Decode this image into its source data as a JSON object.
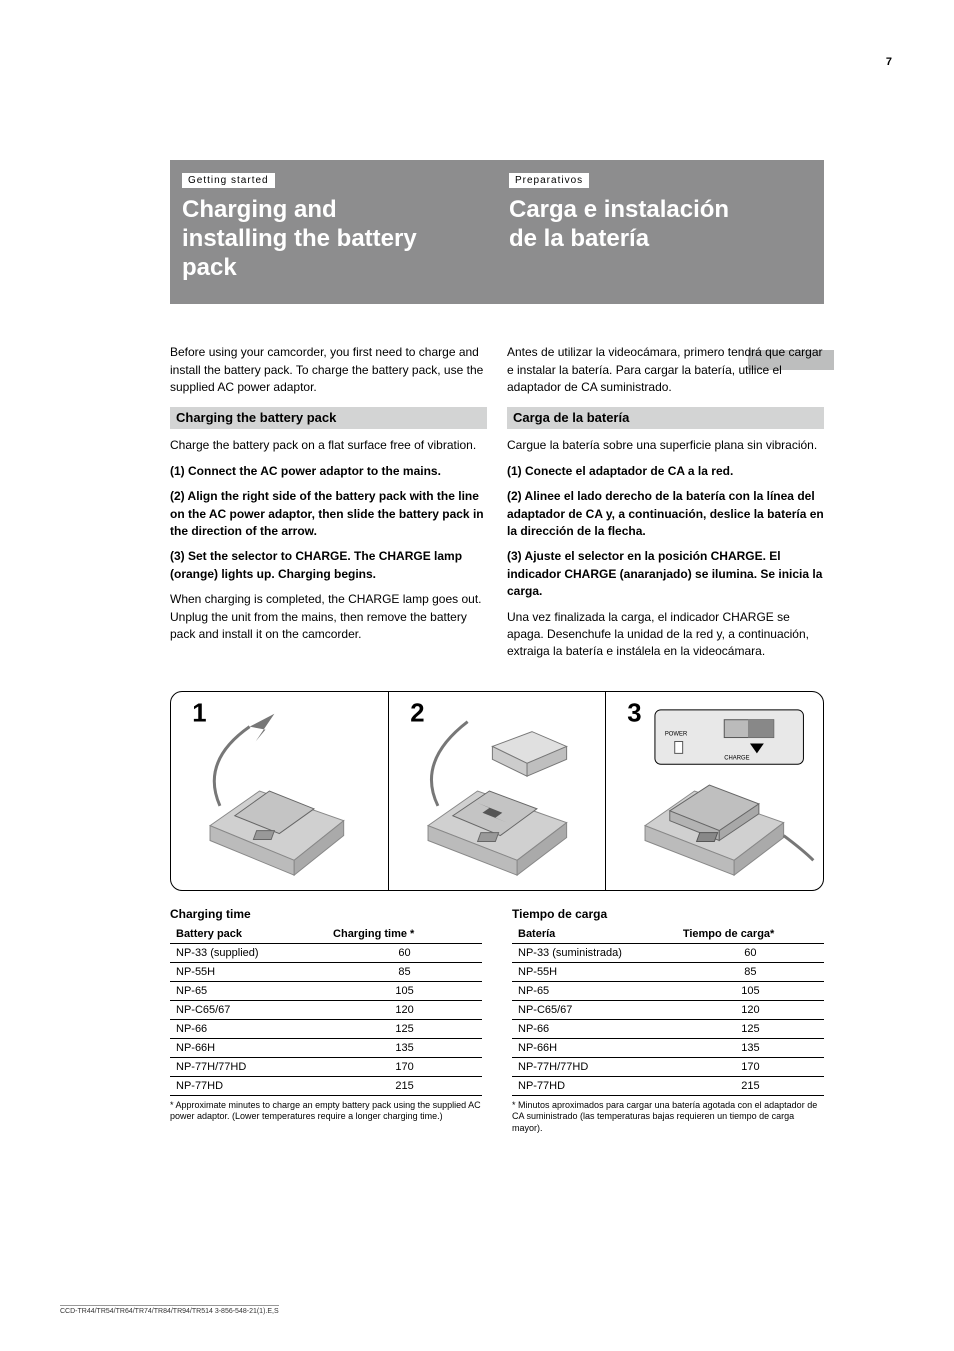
{
  "page_number": "7",
  "footer_stamp": "CCD-TR44/TR54/TR64/TR74/TR84/TR94/TR514   3-856-548-21(1).E,S",
  "band": {
    "left": {
      "label": "Getting started",
      "title_l1": "Charging and",
      "title_l2": "installing the battery",
      "title_l3": "pack"
    },
    "right": {
      "label": "Preparativos",
      "title_l1": "Carga e instalación",
      "title_l2": "de la batería"
    }
  },
  "intro_en": "Before using your camcorder, you first need to charge and install the battery pack. To charge the battery pack, use the supplied AC power adaptor.",
  "intro_es": "Antes de utilizar la videocámara, primero tendrá que cargar e instalar la batería. Para cargar la batería, utilice el adaptador de CA suministrado.",
  "sub_en": "Charging the battery pack",
  "sub_es": "Carga de la batería",
  "after_sub_en": "Charge the battery pack on a flat surface free of vibration.",
  "after_sub_es": "Cargue la batería sobre una superficie plana sin vibración.",
  "steps_en": [
    "(1) Connect the AC power adaptor to the mains.",
    "(2) Align the right side of the battery pack with the line on the AC power adaptor, then slide the battery pack in the direction of the arrow.",
    "(3) Set the selector to CHARGE. The CHARGE lamp (orange) lights up. Charging begins."
  ],
  "steps_es": [
    "(1) Conecte el adaptador de CA a la red.",
    "(2) Alinee el lado derecho de la batería con la línea del adaptador de CA y, a continuación, deslice la batería en la dirección de la flecha.",
    "(3) Ajuste el selector en la posición CHARGE. El indicador CHARGE (anaranjado) se ilumina. Se inicia la carga."
  ],
  "post_en": "When charging is completed, the CHARGE lamp goes out. Unplug the unit from the mains, then remove the battery pack and install it on the camcorder.",
  "post_es": "Una vez finalizada la carga, el indicador CHARGE se apaga. Desenchufe la unidad de la red y, a continuación, extraiga la batería e instálela en la videocámara.",
  "illus": {
    "cell_labels": [
      "1",
      "2",
      "3"
    ],
    "inset_labels": [
      "POWER",
      "CHARGE"
    ]
  },
  "table_head_en": "Charging time",
  "table_head_es": "Tiempo de carga",
  "table_en": {
    "cols": [
      "Battery pack",
      "Charging time *"
    ],
    "rows": [
      [
        "NP-33 (supplied)",
        "60"
      ],
      [
        "NP-55H",
        "85"
      ],
      [
        "NP-65",
        "105"
      ],
      [
        "NP-C65/67",
        "120"
      ],
      [
        "NP-66",
        "125"
      ],
      [
        "NP-66H",
        "135"
      ],
      [
        "NP-77H/77HD",
        "170"
      ],
      [
        "NP-77HD",
        "215"
      ]
    ]
  },
  "table_es": {
    "cols": [
      "Batería",
      "Tiempo de carga*"
    ],
    "rows": [
      [
        "NP-33 (suministrada)",
        "60"
      ],
      [
        "NP-55H",
        "85"
      ],
      [
        "NP-65",
        "105"
      ],
      [
        "NP-C65/67",
        "120"
      ],
      [
        "NP-66",
        "125"
      ],
      [
        "NP-66H",
        "135"
      ],
      [
        "NP-77H/77HD",
        "170"
      ],
      [
        "NP-77HD",
        "215"
      ]
    ]
  },
  "note_en": "* Approximate minutes to charge an empty battery pack using the supplied AC power adaptor. (Lower temperatures require a longer charging time.)",
  "note_es": "* Minutos aproximados para cargar una batería agotada con el adaptador de CA suministrado (las temperaturas bajas requieren un tiempo de carga mayor)."
}
